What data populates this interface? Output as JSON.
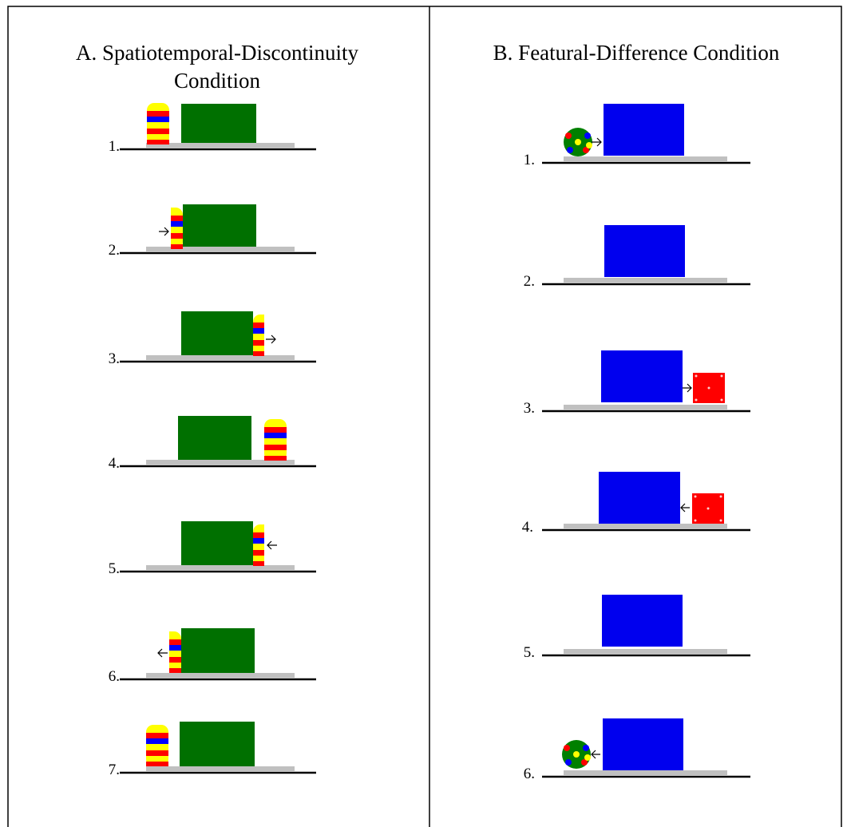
{
  "panels": [
    {
      "title_lines": [
        "A. Spatiotemporal-Discontinuity",
        "Condition"
      ],
      "steps": [
        "1.",
        "2.",
        "3.",
        "4.",
        "5.",
        "6.",
        "7."
      ]
    },
    {
      "title_lines": [
        "B. Featural-Difference Condition"
      ],
      "steps": [
        "1.",
        "2.",
        "3.",
        "4.",
        "5.",
        "6."
      ]
    }
  ]
}
